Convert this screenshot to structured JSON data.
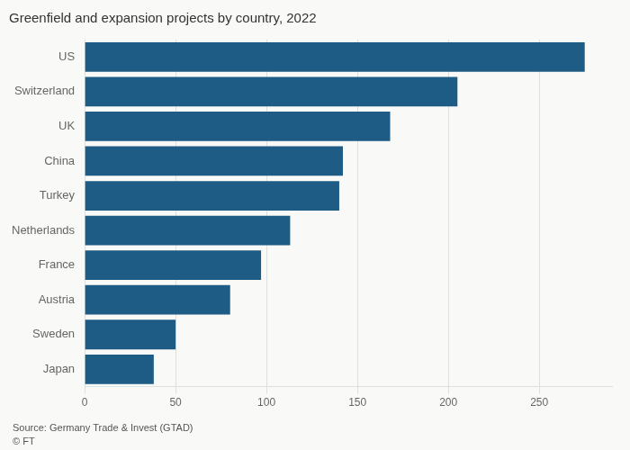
{
  "chart_data": {
    "type": "bar",
    "orientation": "horizontal",
    "title": "Greenfield and expansion projects by country, 2022",
    "annotations": [
      "Source: Germany Trade & Invest (GTAD)",
      "© FT"
    ],
    "categories": [
      "Japan",
      "Sweden",
      "Austria",
      "France",
      "Netherlands",
      "Turkey",
      "China",
      "UK",
      "Switzerland",
      "US"
    ],
    "values": [
      38,
      50,
      80,
      97,
      113,
      140,
      142,
      168,
      205,
      275
    ],
    "color": "#1f5c85",
    "xlim": [
      0,
      290
    ],
    "xticks": [
      0,
      50,
      100,
      150,
      200,
      250
    ],
    "grid": true,
    "legend": false
  }
}
